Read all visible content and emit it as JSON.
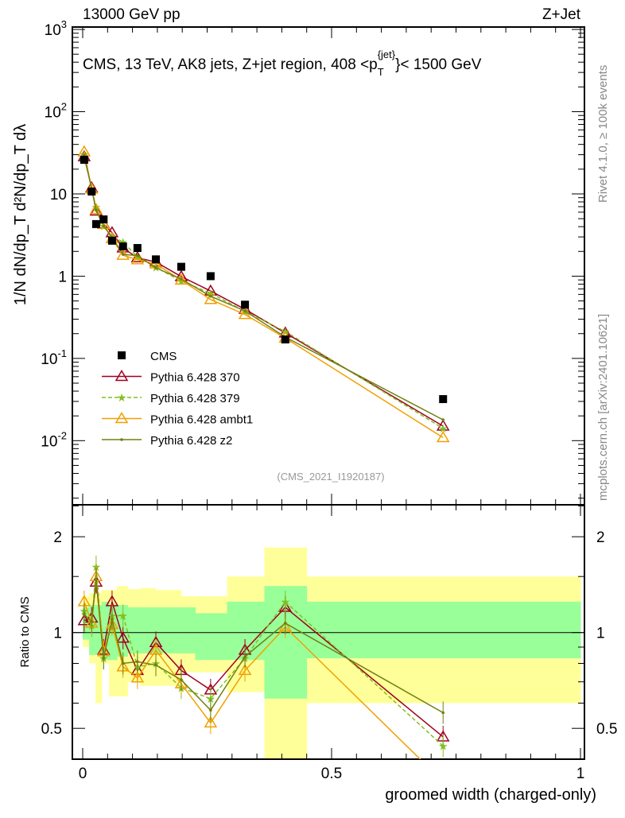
{
  "header": {
    "left": "13000 GeV pp",
    "right": "Z+Jet"
  },
  "side": {
    "rivet": "Rivet 4.1.0, ≥ 100k events",
    "mcplots": "mcplots.cern.ch [arXiv:2401.10621]"
  },
  "chart_data": {
    "type": "line",
    "title": "CMS, 13 TeV, AK8 jets, Z+jet region, 408 < p_T^{jet} < 1500 GeV",
    "title_parts": {
      "main": "CMS, 13 TeV, AK8 jets, Z+jet region, 408 <p",
      "sup": "{jet}",
      "sub": "T",
      "tail": "}< 1500 GeV"
    },
    "analysis": "(CMS_2021_I1920187)",
    "ylabel": "1/N dN/dp_T d²N/dp_T dλ",
    "xlabel": "groomed width (charged-only)",
    "ratio_ylabel": "Ratio to CMS",
    "xlim": [
      0,
      1
    ],
    "ylim": [
      0.00166,
      1070
    ],
    "ratio_ylim": [
      0.4,
      2.52
    ],
    "yscale": "log",
    "ratio_yscale": "log",
    "x_ticks": [
      "0",
      "0.5",
      "1"
    ],
    "y_ticks": [
      "10^-2",
      "10^-1",
      "1",
      "10",
      "10^2",
      "10^3"
    ],
    "ratio_ticks": [
      "0.5",
      "1",
      "2"
    ],
    "legend_position": "middle-left",
    "x": [
      0.003,
      0.018,
      0.027,
      0.042,
      0.059,
      0.081,
      0.11,
      0.147,
      0.198,
      0.257,
      0.326,
      0.407,
      0.724
    ],
    "data": {
      "name": "CMS",
      "values": [
        26,
        10.7,
        4.3,
        4.9,
        2.7,
        2.3,
        2.2,
        1.6,
        1.3,
        1.0,
        0.45,
        0.17,
        0.032
      ]
    },
    "series": [
      {
        "name": "Pythia 6.428 370",
        "color": "#a00020",
        "marker": "triangle",
        "dash": false,
        "ratio": [
          1.09,
          1.11,
          1.44,
          0.88,
          1.25,
          0.96,
          0.76,
          0.93,
          0.76,
          0.66,
          0.88,
          1.2,
          0.47
        ]
      },
      {
        "name": "Pythia 6.428 379",
        "color": "#80c020",
        "marker": "star",
        "dash": true,
        "ratio": [
          1.17,
          1.05,
          1.61,
          0.83,
          1.13,
          1.13,
          0.78,
          0.8,
          0.67,
          0.62,
          0.83,
          1.25,
          0.44
        ]
      },
      {
        "name": "Pythia 6.428 ambt1",
        "color": "#f0a000",
        "marker": "triangle",
        "dash": false,
        "ratio": [
          1.25,
          1.07,
          1.5,
          0.87,
          1.06,
          0.78,
          0.72,
          0.88,
          0.69,
          0.52,
          0.76,
          1.04,
          0.34
        ]
      },
      {
        "name": "Pythia 6.428 z2",
        "color": "#708010",
        "marker": "dot",
        "dash": false,
        "ratio": [
          1.14,
          1.08,
          1.47,
          0.83,
          1.1,
          0.8,
          0.81,
          0.79,
          0.71,
          0.57,
          0.84,
          1.07,
          0.56
        ]
      }
    ],
    "bands": {
      "edges": [
        0,
        0.013,
        0.026,
        0.038,
        0.053,
        0.069,
        0.09,
        0.115,
        0.147,
        0.198,
        0.226,
        0.29,
        0.365,
        0.45,
        1.0
      ],
      "green": [
        [
          0.95,
          1.2
        ],
        [
          0.85,
          1.22
        ],
        [
          0.85,
          1.22
        ],
        [
          0.82,
          1.25
        ],
        [
          0.82,
          1.22
        ],
        [
          0.84,
          1.22
        ],
        [
          0.86,
          1.2
        ],
        [
          0.86,
          1.2
        ],
        [
          0.86,
          1.2
        ],
        [
          0.86,
          1.2
        ],
        [
          0.82,
          1.15
        ],
        [
          0.82,
          1.25
        ],
        [
          0.62,
          1.4
        ],
        [
          0.83,
          1.25
        ]
      ],
      "yellow": [
        [
          0.9,
          1.3
        ],
        [
          0.8,
          1.33
        ],
        [
          0.6,
          1.33
        ],
        [
          0.8,
          1.36
        ],
        [
          0.63,
          1.36
        ],
        [
          0.63,
          1.4
        ],
        [
          0.7,
          1.37
        ],
        [
          0.68,
          1.38
        ],
        [
          0.68,
          1.36
        ],
        [
          0.75,
          1.3
        ],
        [
          0.75,
          1.3
        ],
        [
          0.65,
          1.5
        ],
        [
          0.4,
          1.85
        ],
        [
          0.6,
          1.5
        ]
      ]
    }
  }
}
